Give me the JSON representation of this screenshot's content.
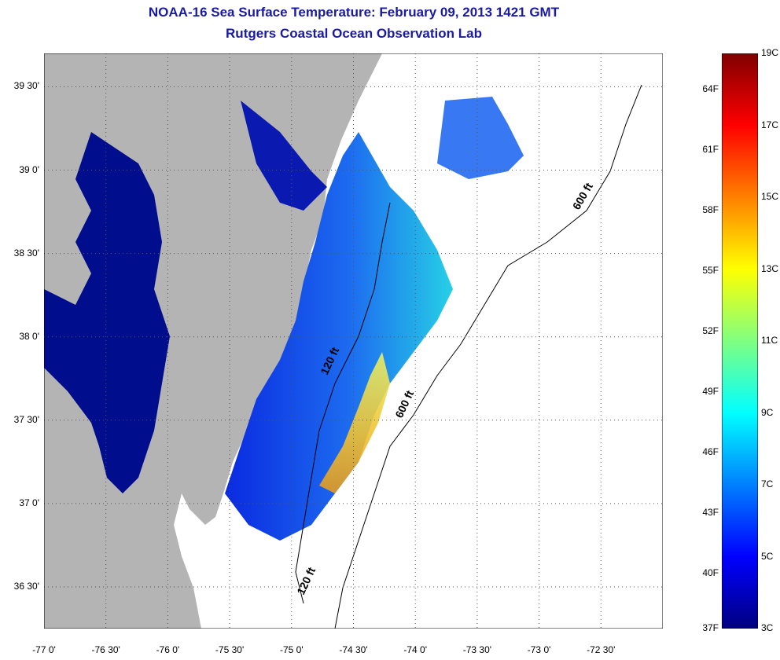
{
  "title": {
    "line1": "NOAA-16 Sea Surface Temperature:  February 09, 2013 1421 GMT",
    "line2": "Rutgers Coastal Ocean Observation Lab"
  },
  "map": {
    "lat_labels": [
      {
        "label": "39 30'",
        "lat": 39.5
      },
      {
        "label": "39 0'",
        "lat": 39.0
      },
      {
        "label": "38 30'",
        "lat": 38.5
      },
      {
        "label": "38 0'",
        "lat": 38.0
      },
      {
        "label": "37 30'",
        "lat": 37.5
      },
      {
        "label": "37 0'",
        "lat": 37.0
      },
      {
        "label": "36 30'",
        "lat": 36.5
      }
    ],
    "lon_labels": [
      {
        "label": "-77 0'",
        "lon": -77.0
      },
      {
        "label": "-76 30'",
        "lon": -76.5
      },
      {
        "label": "-76 0'",
        "lon": -76.0
      },
      {
        "label": "-75 30'",
        "lon": -75.5
      },
      {
        "label": "-75 0'",
        "lon": -75.0
      },
      {
        "label": "-74 30'",
        "lon": -74.5
      },
      {
        "label": "-74 0'",
        "lon": -74.0
      },
      {
        "label": "-73 30'",
        "lon": -73.5
      },
      {
        "label": "-73 0'",
        "lon": -73.0
      },
      {
        "label": "-72 30'",
        "lon": -72.5
      }
    ],
    "lon_range": [
      -77.0,
      -72.0
    ],
    "lat_range": [
      36.25,
      39.7
    ],
    "contour_labels": [
      "120 ft",
      "120 ft",
      "600 ft",
      "600 ft"
    ],
    "land_color": "#b4b4b4",
    "water_nodata_color": "#ffffff"
  },
  "colorbar": {
    "f_labels": [
      "64F",
      "61F",
      "58F",
      "55F",
      "52F",
      "49F",
      "46F",
      "43F",
      "40F",
      "37F"
    ],
    "c_labels": [
      "19C",
      "17C",
      "15C",
      "13C",
      "11C",
      "9C",
      "7C",
      "5C",
      "3C"
    ],
    "colors": [
      "#000080",
      "#0000ff",
      "#0080ff",
      "#00ffff",
      "#80ff80",
      "#ffff00",
      "#ff8000",
      "#ff0000",
      "#800000"
    ]
  }
}
